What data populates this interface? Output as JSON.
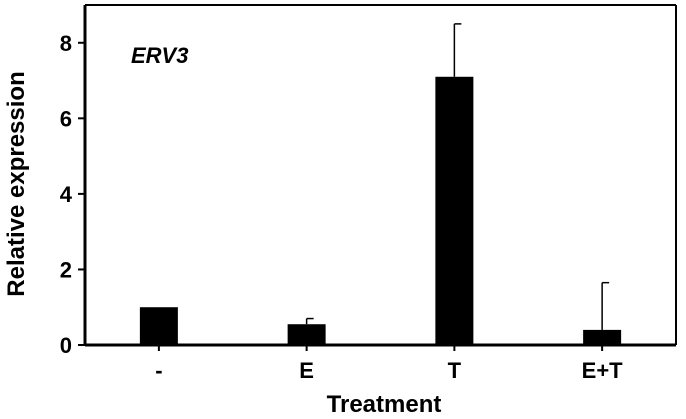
{
  "chart_data": {
    "type": "bar",
    "annotation": "ERV3",
    "xlabel": "Treatment",
    "ylabel": "Relative expression",
    "categories": [
      "-",
      "E",
      "T",
      "E+T"
    ],
    "values": [
      1.0,
      0.55,
      7.1,
      0.4
    ],
    "error_upper": [
      0.0,
      0.15,
      1.4,
      1.25
    ],
    "ylim": [
      0,
      9
    ],
    "y_ticks": [
      0,
      2,
      4,
      6,
      8
    ],
    "y_tick_labels": [
      "0",
      "2",
      "4",
      "6",
      "8"
    ],
    "grid": false,
    "legend": "none",
    "bar_color": "#000000",
    "axis_color": "#000000"
  }
}
